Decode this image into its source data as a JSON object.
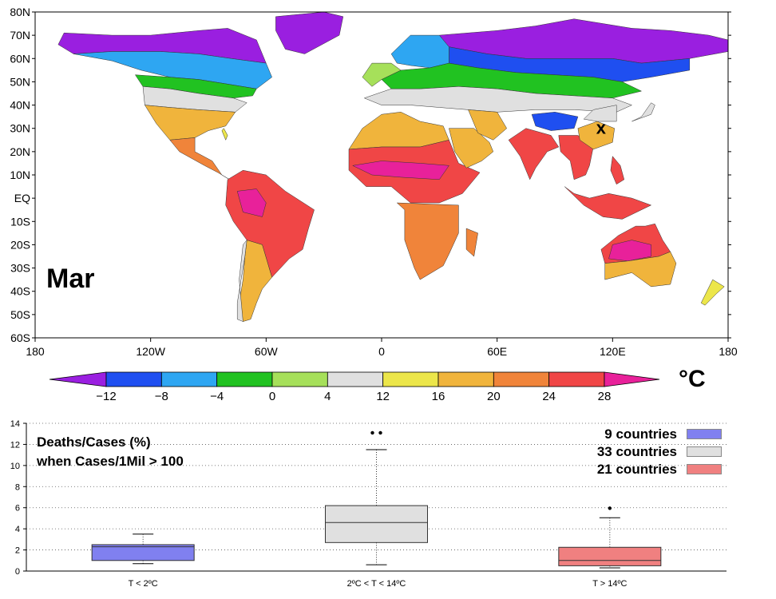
{
  "map": {
    "month_label": "Mar",
    "lat_labels": [
      "80N",
      "70N",
      "60N",
      "50N",
      "40N",
      "30N",
      "20N",
      "10N",
      "EQ",
      "10S",
      "20S",
      "30S",
      "40S",
      "50S",
      "60S"
    ],
    "lon_labels": [
      "180",
      "120W",
      "60W",
      "0",
      "60E",
      "120E",
      "180"
    ],
    "marker_label": "x"
  },
  "colorbar": {
    "unit_label": "°C",
    "tick_labels": [
      "−12",
      "−8",
      "−4",
      "0",
      "4",
      "12",
      "16",
      "20",
      "24",
      "28"
    ],
    "colors": [
      "#9a1fe0",
      "#1f4ff0",
      "#2ea6f2",
      "#21c221",
      "#a6e05a",
      "#e0e0e0",
      "#ece64a",
      "#f0b43c",
      "#f0843a",
      "#f04646",
      "#e8219a"
    ]
  },
  "chart_data": {
    "type": "box",
    "title_lines": [
      "Deaths/Cases (%)",
      "when Cases/1Mil > 100"
    ],
    "categories": [
      "T < 2ºC",
      "2ºC < T < 14ºC",
      "T > 14ºC"
    ],
    "ylim": [
      0,
      14
    ],
    "yticks": [
      0,
      2,
      4,
      6,
      8,
      10,
      12,
      14
    ],
    "grid": true,
    "legend_position": "top-right",
    "series": [
      {
        "name": "9 countries",
        "color": "#8080f0",
        "whisker_low": 0.7,
        "q1": 1.0,
        "median": 2.3,
        "q3": 2.5,
        "whisker_high": 3.5,
        "outliers": []
      },
      {
        "name": "33 countries",
        "color": "#e0e0e0",
        "whisker_low": 0.6,
        "q1": 2.7,
        "median": 4.6,
        "q3": 6.2,
        "whisker_high": 11.5,
        "outliers": [
          13.1,
          13.1
        ]
      },
      {
        "name": "21 countries",
        "color": "#f08080",
        "whisker_low": 0.3,
        "q1": 0.5,
        "median": 1.0,
        "q3": 2.25,
        "whisker_high": 5.05,
        "outliers": [
          5.95
        ]
      }
    ]
  }
}
